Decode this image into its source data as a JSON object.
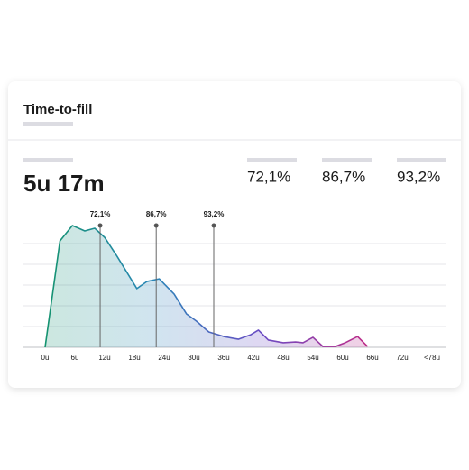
{
  "header": {
    "title": "Time-to-fill"
  },
  "summary": {
    "value": "5u 17m",
    "percentiles": [
      "72,1%",
      "86,7%",
      "93,2%"
    ]
  },
  "chart_data": {
    "type": "area",
    "x": [
      0,
      3,
      5.5,
      8,
      10,
      12,
      14.5,
      18.5,
      20.5,
      23,
      26,
      28.5,
      30.5,
      33,
      36,
      39,
      41.5,
      43,
      45,
      48,
      50.5,
      52,
      54,
      56,
      58.5,
      60.5,
      63,
      65
    ],
    "values": [
      0,
      5.13,
      5.87,
      5.61,
      5.74,
      5.3,
      4.39,
      2.83,
      3.17,
      3.3,
      2.57,
      1.61,
      1.26,
      0.74,
      0.52,
      0.39,
      0.61,
      0.83,
      0.35,
      0.22,
      0.26,
      0.22,
      0.48,
      0.04,
      0.04,
      0.22,
      0.52,
      0.04
    ],
    "xlim": [
      0,
      78
    ],
    "xticks": [
      {
        "value": 0,
        "label": "0u"
      },
      {
        "value": 6,
        "label": "6u"
      },
      {
        "value": 12,
        "label": "12u"
      },
      {
        "value": 18,
        "label": "18u"
      },
      {
        "value": 24,
        "label": "24u"
      },
      {
        "value": 30,
        "label": "30u"
      },
      {
        "value": 36,
        "label": "36u"
      },
      {
        "value": 42,
        "label": "42u"
      },
      {
        "value": 48,
        "label": "48u"
      },
      {
        "value": 54,
        "label": "54u"
      },
      {
        "value": 60,
        "label": "60u"
      },
      {
        "value": 66,
        "label": "66u"
      },
      {
        "value": 72,
        "label": "72u"
      },
      {
        "value": 78,
        "label": "<78u"
      }
    ],
    "ylim": [
      0,
      6
    ],
    "yticks": [
      0,
      1,
      2,
      3,
      4,
      5
    ],
    "grid": true,
    "markers": [
      {
        "x": 11.1,
        "label": "72,1%"
      },
      {
        "x": 22.4,
        "label": "86,7%"
      },
      {
        "x": 34,
        "label": "93,2%"
      }
    ],
    "colors": [
      "#14936f",
      "#2a86b8",
      "#6b4cc4",
      "#c02a86"
    ]
  }
}
